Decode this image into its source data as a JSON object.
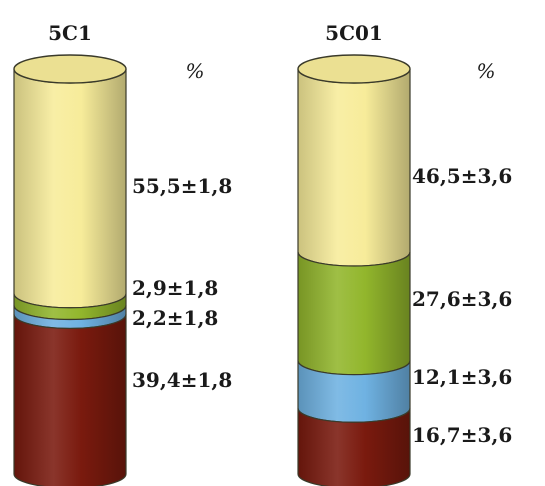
{
  "chart_data": {
    "type": "bar",
    "stacked": true,
    "style": "3d-cylinder",
    "unit": "%",
    "segments": [
      {
        "key": "top",
        "color": "#F7EC9A"
      },
      {
        "key": "second",
        "color": "#92B62C"
      },
      {
        "key": "third",
        "color": "#6FB2E2"
      },
      {
        "key": "bottom",
        "color": "#7A1A0E"
      }
    ],
    "columns": [
      {
        "title": "5C1",
        "values": [
          55.5,
          2.9,
          2.2,
          39.4
        ],
        "labels": [
          "55,5±1,8",
          "2,9±1,8",
          "2,2±1,8",
          "39,4±1,8"
        ]
      },
      {
        "title": "5C01",
        "values": [
          46.5,
          27.6,
          12.1,
          16.7
        ],
        "labels": [
          "46,5±3,6",
          "27,6±3,6",
          "12,1±3,6",
          "16,7±3,6"
        ]
      }
    ]
  }
}
